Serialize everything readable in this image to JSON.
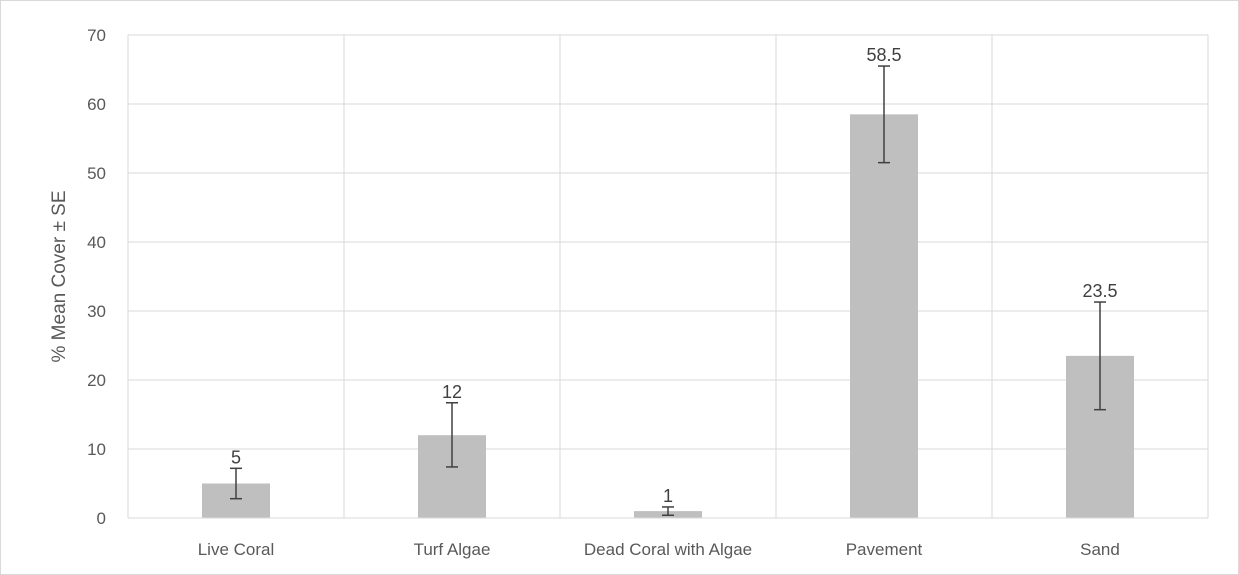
{
  "chart_data": {
    "type": "bar",
    "title": "",
    "xlabel": "",
    "ylabel": "% Mean Cover ± SE",
    "categories": [
      "Live Coral",
      "Turf Algae",
      "Dead Coral with Algae",
      "Pavement",
      "Sand"
    ],
    "values": [
      5,
      12,
      1,
      58.5,
      23.5
    ],
    "data_labels": [
      "5",
      "12",
      "1",
      "58.5",
      "23.5"
    ],
    "error_bars": [
      {
        "low": 2.8,
        "high": 7.2
      },
      {
        "low": 7.4,
        "high": 16.7
      },
      {
        "low": 0.4,
        "high": 1.6
      },
      {
        "low": 51.5,
        "high": 65.5
      },
      {
        "low": 15.7,
        "high": 31.3
      }
    ],
    "ylim": [
      0,
      70
    ],
    "yticks": [
      0,
      10,
      20,
      30,
      40,
      50,
      60,
      70
    ],
    "grid": true,
    "legend": "none",
    "colors": {
      "bar": "#bfbfbf",
      "error_bar": "#404040",
      "grid": "#d9d9d9",
      "text": "#595959"
    }
  }
}
